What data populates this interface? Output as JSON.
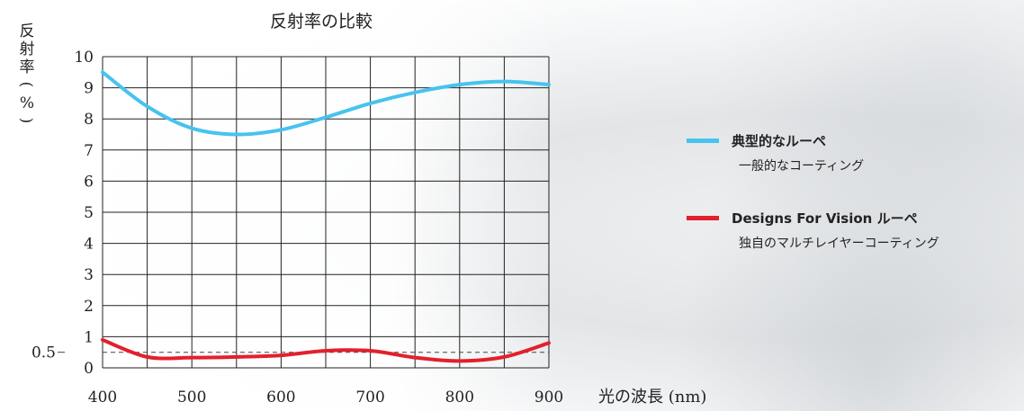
{
  "chart_data": {
    "type": "line",
    "title": "反射率の比較",
    "xlabel": "光の波長 (nm)",
    "ylabel": "反射率(%)",
    "xlim": [
      400,
      900
    ],
    "ylim": [
      0,
      10
    ],
    "x_ticks": [
      400,
      500,
      600,
      700,
      800,
      900
    ],
    "y_ticks": [
      0,
      1,
      2,
      3,
      4,
      5,
      6,
      7,
      8,
      9,
      10
    ],
    "y_extra_tick": 0.5,
    "grid": true,
    "legend_position": "right",
    "series": [
      {
        "name": "典型的なルーペ",
        "description": "一般的なコーティング",
        "color": "#47c3ee",
        "x": [
          400,
          450,
          500,
          550,
          600,
          650,
          700,
          750,
          800,
          850,
          900
        ],
        "y": [
          9.5,
          8.4,
          7.7,
          7.5,
          7.65,
          8.05,
          8.5,
          8.85,
          9.1,
          9.2,
          9.1
        ]
      },
      {
        "name": "Designs For Vision ルーペ",
        "description": "独自のマルチレイヤーコーティング",
        "color": "#e3202c",
        "x": [
          400,
          450,
          500,
          550,
          600,
          650,
          700,
          750,
          800,
          850,
          900
        ],
        "y": [
          0.9,
          0.35,
          0.33,
          0.35,
          0.4,
          0.55,
          0.55,
          0.33,
          0.22,
          0.35,
          0.8
        ]
      }
    ]
  }
}
